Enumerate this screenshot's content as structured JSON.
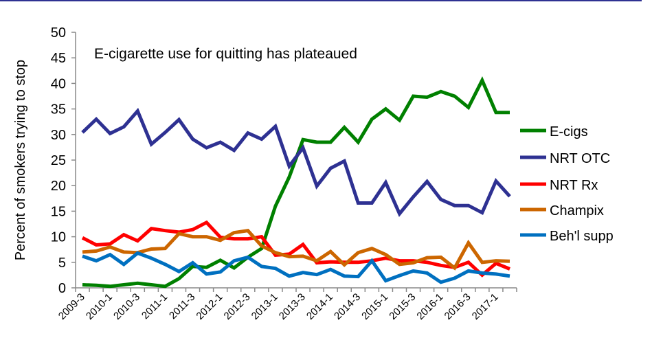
{
  "chart_data": {
    "type": "line",
    "title": "E-cigarette use for quitting has plateaued",
    "xlabel": "",
    "ylabel": "Percent of smokers trying to stop",
    "ylim": [
      0,
      50
    ],
    "yticks": [
      0,
      5,
      10,
      15,
      20,
      25,
      30,
      35,
      40,
      45,
      50
    ],
    "grid": false,
    "legend": "right",
    "x": [
      "2009-3",
      "2009-4",
      "2010-1",
      "2010-2",
      "2010-3",
      "2010-4",
      "2011-1",
      "2011-2",
      "2011-3",
      "2011-4",
      "2012-1",
      "2012-2",
      "2012-3",
      "2012-4",
      "2013-1",
      "2013-2",
      "2013-3",
      "2013-4",
      "2014-1",
      "2014-2",
      "2014-3",
      "2014-4",
      "2015-1",
      "2015-2",
      "2015-3",
      "2015-4",
      "2016-1",
      "2016-2",
      "2016-3",
      "2016-4",
      "2017-1",
      "2017-2"
    ],
    "xtick_labels": [
      "2009-3",
      "2010-1",
      "2010-3",
      "2011-1",
      "2011-3",
      "2012-1",
      "2012-3",
      "2013-1",
      "2013-3",
      "2014-1",
      "2014-3",
      "2015-1",
      "2015-3",
      "2016-1",
      "2016-3",
      "2017-1"
    ],
    "series": [
      {
        "name": "E-cigs",
        "color": "#008000",
        "values": [
          0.6,
          0.5,
          0.3,
          0.6,
          0.9,
          0.6,
          0.3,
          1.8,
          4.2,
          4.0,
          5.4,
          3.9,
          6.0,
          7.7,
          16.0,
          21.7,
          29.0,
          28.5,
          28.5,
          31.4,
          28.5,
          33.0,
          35.0,
          32.8,
          37.5,
          37.3,
          38.4,
          37.5,
          35.3,
          40.6,
          34.3,
          34.3
        ]
      },
      {
        "name": "NRT OTC",
        "color": "#2e3192",
        "values": [
          30.4,
          33.0,
          30.2,
          31.5,
          34.6,
          28.1,
          30.4,
          32.9,
          29.1,
          27.4,
          28.5,
          26.9,
          30.3,
          29.1,
          31.6,
          23.8,
          27.4,
          19.9,
          23.4,
          24.8,
          16.6,
          16.6,
          20.6,
          14.5,
          17.8,
          20.8,
          17.3,
          16.1,
          16.1,
          14.7,
          20.9,
          17.9
        ]
      },
      {
        "name": "NRT Rx",
        "color": "#ff0000",
        "values": [
          9.8,
          8.4,
          8.6,
          10.4,
          9.2,
          11.6,
          11.2,
          10.9,
          11.4,
          12.8,
          9.9,
          9.6,
          9.6,
          10.0,
          6.4,
          6.6,
          8.5,
          4.9,
          5.1,
          5.0,
          5.0,
          5.3,
          5.8,
          5.3,
          5.3,
          5.0,
          4.4,
          4.0,
          5.0,
          2.5,
          4.8,
          3.7
        ]
      },
      {
        "name": "Champix",
        "color": "#cc6600",
        "values": [
          7.0,
          7.2,
          8.0,
          7.0,
          6.9,
          7.6,
          7.7,
          10.6,
          10.0,
          10.0,
          9.3,
          10.8,
          11.2,
          8.2,
          6.9,
          6.1,
          6.2,
          5.3,
          7.1,
          4.5,
          6.9,
          7.7,
          6.5,
          4.6,
          4.9,
          5.9,
          6.0,
          3.9,
          8.8,
          5.0,
          5.3,
          5.2
        ]
      },
      {
        "name": "Beh'l supp",
        "color": "#0070c0",
        "values": [
          6.2,
          5.3,
          6.5,
          4.6,
          6.8,
          5.8,
          4.6,
          3.2,
          4.9,
          2.7,
          3.1,
          5.3,
          6.0,
          4.2,
          3.8,
          2.3,
          3.0,
          2.6,
          3.6,
          2.3,
          2.2,
          5.3,
          1.4,
          2.4,
          3.3,
          2.9,
          1.1,
          1.9,
          3.3,
          2.9,
          2.7,
          2.3
        ]
      }
    ]
  }
}
